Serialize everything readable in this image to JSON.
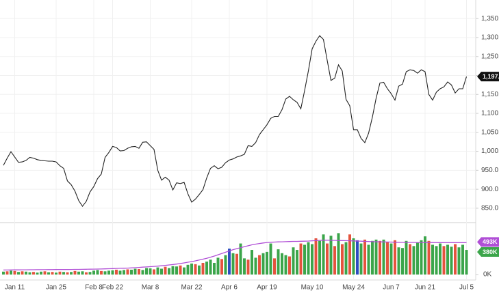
{
  "chart_data": {
    "type": "line",
    "color": "#222222",
    "categories": [
      null,
      null,
      null,
      "Jan 11",
      null,
      null,
      null,
      null,
      null,
      null,
      null,
      null,
      null,
      null,
      "Jan 25",
      null,
      null,
      null,
      null,
      null,
      null,
      null,
      null,
      null,
      "Feb 8",
      null,
      null,
      null,
      null,
      "Feb 22",
      null,
      null,
      null,
      null,
      null,
      null,
      null,
      null,
      null,
      "Mar 8",
      null,
      null,
      null,
      null,
      null,
      null,
      null,
      null,
      null,
      null,
      "Mar 22",
      null,
      null,
      null,
      null,
      null,
      null,
      null,
      null,
      null,
      "Apr 6",
      null,
      null,
      null,
      null,
      null,
      null,
      null,
      null,
      null,
      "Apr 19",
      null,
      null,
      null,
      null,
      null,
      null,
      null,
      null,
      null,
      null,
      null,
      "May 10",
      null,
      null,
      null,
      null,
      null,
      null,
      null,
      null,
      null,
      null,
      "May 24",
      null,
      null,
      null,
      null,
      null,
      null,
      null,
      null,
      null,
      "Jun 7",
      null,
      null,
      null,
      null,
      null,
      null,
      null,
      null,
      "Jun 21",
      null,
      null,
      null,
      null,
      null,
      null,
      null,
      null,
      null,
      null,
      "Jul 5"
    ],
    "values": [
      963,
      982,
      999,
      985,
      971,
      972,
      976,
      984,
      982,
      978,
      976,
      975,
      974,
      974,
      972,
      962,
      955,
      922,
      912,
      895,
      870,
      855,
      868,
      893,
      907,
      928,
      940,
      984,
      997,
      1013,
      1010,
      1001,
      1002,
      1008,
      1012,
      1013,
      1008,
      1024,
      1025,
      1015,
      1005,
      950,
      924,
      932,
      924,
      898,
      917,
      915,
      918,
      888,
      866,
      874,
      886,
      899,
      930,
      955,
      962,
      954,
      958,
      970,
      977,
      980,
      985,
      988,
      992,
      1015,
      1013,
      1023,
      1044,
      1057,
      1070,
      1087,
      1092,
      1092,
      1110,
      1138,
      1145,
      1136,
      1129,
      1112,
      1160,
      1212,
      1270,
      1290,
      1305,
      1295,
      1240,
      1187,
      1193,
      1228,
      1212,
      1137,
      1120,
      1057,
      1057,
      1034,
      1023,
      1048,
      1090,
      1140,
      1180,
      1182,
      1165,
      1152,
      1135,
      1172,
      1177,
      1210,
      1215,
      1213,
      1206,
      1215,
      1210,
      1150,
      1135,
      1156,
      1165,
      1170,
      1183,
      1175,
      1154,
      1165,
      1165,
      1197
    ],
    "ylim": [
      812,
      1399
    ],
    "yticks": [
      {
        "value": 850,
        "label": "850.0"
      },
      {
        "value": 900,
        "label": "900.0"
      },
      {
        "value": 950,
        "label": "950.0"
      },
      {
        "value": 1000,
        "label": "1,000.0"
      },
      {
        "value": 1050,
        "label": "1,050.0"
      },
      {
        "value": 1100,
        "label": "1,100.0"
      },
      {
        "value": 1150,
        "label": "1,150.0"
      },
      {
        "value": 1200,
        "label": "1,200.0"
      },
      {
        "value": 1250,
        "label": "1,250.0"
      },
      {
        "value": 1300,
        "label": "1,300.0"
      },
      {
        "value": 1350,
        "label": "1,350.0"
      }
    ],
    "grid": true,
    "price_tag": {
      "value": 1197,
      "label": "1,197.0",
      "color": "#111111"
    },
    "volume": {
      "values": [
        45,
        50,
        60,
        55,
        40,
        50,
        45,
        35,
        40,
        30,
        45,
        50,
        35,
        40,
        30,
        45,
        40,
        35,
        40,
        55,
        45,
        50,
        35,
        40,
        60,
        70,
        55,
        50,
        60,
        65,
        75,
        60,
        70,
        80,
        75,
        90,
        85,
        70,
        100,
        95,
        80,
        110,
        90,
        120,
        100,
        130,
        125,
        140,
        110,
        150,
        170,
        160,
        140,
        180,
        200,
        230,
        180,
        260,
        240,
        300,
        400,
        330,
        320,
        480,
        250,
        230,
        380,
        260,
        300,
        330,
        350,
        480,
        250,
        390,
        330,
        300,
        280,
        420,
        380,
        480,
        460,
        500,
        470,
        560,
        520,
        620,
        480,
        600,
        440,
        640,
        470,
        500,
        620,
        560,
        530,
        480,
        540,
        460,
        520,
        540,
        520,
        540,
        500,
        480,
        530,
        420,
        410,
        520,
        470,
        440,
        500,
        530,
        590,
        520,
        460,
        440,
        480,
        440,
        460,
        430,
        470,
        420,
        460,
        380
      ],
      "colors": [
        "#3ba54a",
        "#e4533d",
        "#3ba54a",
        "#e4533d",
        "#3ba54a",
        "#e4533d",
        "#3ba54a",
        "#3ba54a",
        "#e4533d",
        "#3ba54a",
        "#3ba54a",
        "#e4533d",
        "#3ba54a",
        "#e4533d",
        "#3ba54a",
        "#e4533d",
        "#3ba54a",
        "#e4533d",
        "#3ba54a",
        "#e4533d",
        "#3ba54a",
        "#3ba54a",
        "#e4533d",
        "#3ba54a",
        "#3ba54a",
        "#3ba54a",
        "#e4533d",
        "#3ba54a",
        "#3ba54a",
        "#3ba54a",
        "#e4533d",
        "#3ba54a",
        "#3ba54a",
        "#e4533d",
        "#3ba54a",
        "#3ba54a",
        "#e4533d",
        "#3ba54a",
        "#3ba54a",
        "#3ba54a",
        "#e4533d",
        "#3ba54a",
        "#3ba54a",
        "#e4533d",
        "#3ba54a",
        "#3ba54a",
        "#3ba54a",
        "#e4533d",
        "#3ba54a",
        "#3ba54a",
        "#3ba54a",
        "#e4533d",
        "#3ba54a",
        "#e4533d",
        "#3ba54a",
        "#3ba54a",
        "#3ba54a",
        "#3ba54a",
        "#e4533d",
        "#3ba54a",
        "#2c4cc0",
        "#3ba54a",
        "#e4533d",
        "#3ba54a",
        "#3ba54a",
        "#e4533d",
        "#3ba54a",
        "#3ba54a",
        "#e4533d",
        "#3ba54a",
        "#3ba54a",
        "#3ba54a",
        "#e4533d",
        "#3ba54a",
        "#3ba54a",
        "#3ba54a",
        "#e4533d",
        "#3ba54a",
        "#3ba54a",
        "#e4533d",
        "#3ba54a",
        "#3ba54a",
        "#3ba54a",
        "#e4533d",
        "#3ba54a",
        "#3ba54a",
        "#e4533d",
        "#3ba54a",
        "#e4533d",
        "#3ba54a",
        "#e4533d",
        "#3ba54a",
        "#e4533d",
        "#3ba54a",
        "#2c4cc0",
        "#3ba54a",
        "#e4533d",
        "#3ba54a",
        "#3ba54a",
        "#3ba54a",
        "#e4533d",
        "#3ba54a",
        "#e4533d",
        "#3ba54a",
        "#e4533d",
        "#3ba54a",
        "#3ba54a",
        "#3ba54a",
        "#e4533d",
        "#3ba54a",
        "#3ba54a",
        "#3ba54a",
        "#3ba54a",
        "#e4533d",
        "#3ba54a",
        "#3ba54a",
        "#3ba54a",
        "#e4533d",
        "#3ba54a",
        "#3ba54a",
        "#e4533d",
        "#3ba54a",
        "#3ba54a",
        "#3ba54a"
      ],
      "ylim": [
        -84,
        792
      ],
      "yticks": [
        {
          "value": 0,
          "label": "0K"
        }
      ],
      "tag": {
        "value": 380,
        "label": "380K",
        "color": "#3ba54a"
      },
      "ma": {
        "color": "#b04fd6",
        "values": [
          70,
          70,
          71,
          72,
          72,
          73,
          73,
          74,
          74,
          75,
          75,
          75,
          76,
          76,
          77,
          77,
          78,
          78,
          79,
          80,
          80,
          81,
          82,
          83,
          84,
          85,
          86,
          88,
          90,
          92,
          94,
          96,
          98,
          100,
          103,
          106,
          110,
          114,
          118,
          122,
          126,
          130,
          136,
          142,
          148,
          155,
          162,
          170,
          180,
          190,
          200,
          212,
          225,
          238,
          252,
          268,
          285,
          305,
          325,
          345,
          365,
          385,
          400,
          415,
          430,
          445,
          460,
          470,
          480,
          488,
          495,
          500,
          502,
          505,
          506,
          508,
          510,
          512,
          512,
          514,
          515,
          518,
          522,
          525,
          528,
          530,
          532,
          530,
          528,
          526,
          525,
          524,
          522,
          520,
          518,
          515,
          512,
          510,
          508,
          506,
          505,
          504,
          503,
          502,
          500,
          499,
          498,
          497,
          496,
          496,
          495,
          495,
          495,
          494,
          494,
          494,
          493,
          493,
          493,
          493,
          493,
          493,
          493,
          493
        ],
        "tag": {
          "value": 493,
          "label": "493K"
        }
      }
    }
  }
}
